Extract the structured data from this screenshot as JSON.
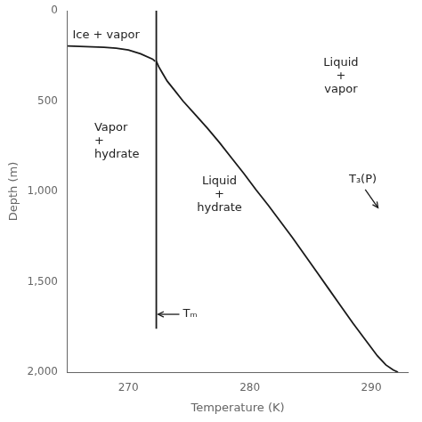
{
  "chart_data": {
    "type": "line",
    "xlabel": "Temperature (K)",
    "ylabel": "Depth (m)",
    "xlim": [
      265,
      293
    ],
    "ylim": [
      2000,
      0
    ],
    "xticks": [
      270,
      280,
      290
    ],
    "yticks": [
      0,
      500,
      1000,
      1500,
      2000
    ],
    "grid": false,
    "series": [
      {
        "color": "#1a1a1a",
        "x": [
          265.0,
          266.0,
          267.0,
          268.0,
          269.0,
          270.0,
          271.0,
          272.0,
          272.2
        ],
        "values": [
          195,
          198,
          200,
          203,
          208,
          217,
          238,
          268,
          280
        ]
      },
      {
        "color": "#1a1a1a",
        "x": [
          272.3,
          272.3
        ],
        "values": [
          0,
          1760
        ]
      },
      {
        "color": "#1a1a1a",
        "x": [
          272.3,
          272.5,
          272.8,
          273.2,
          273.8,
          274.5,
          275.5,
          276.5,
          277.5,
          278.5,
          279.5,
          280.5,
          281.5,
          282.5,
          283.5,
          284.5,
          285.5,
          286.5,
          287.5,
          288.5,
          289.5,
          290.5,
          291.2,
          291.8,
          292.2
        ],
        "values": [
          280,
          310,
          345,
          390,
          440,
          500,
          575,
          650,
          730,
          815,
          900,
          990,
          1075,
          1165,
          1255,
          1350,
          1445,
          1540,
          1635,
          1730,
          1820,
          1910,
          1960,
          1988,
          2000
        ]
      }
    ],
    "annotations": [
      {
        "text": "Ice + vapor",
        "x": 265.4,
        "y": 100
      },
      {
        "text": "Vapor\n+\nhydrate",
        "x": 267.2,
        "y": 720
      },
      {
        "text": "Liquid\n+\nhydrate",
        "x": 277.5,
        "y": 1020
      },
      {
        "text": "Liquid\n+\nvapor",
        "x": 287.5,
        "y": 250
      },
      {
        "text": "Tₘ",
        "x": 274.5,
        "y": 1680,
        "arrow": {
          "x_start": 274.2,
          "y_start": 1680,
          "x_end": 272.45,
          "y_end": 1680
        }
      },
      {
        "text": "T₃(P)",
        "x": 289.3,
        "y": 970,
        "arrow": {
          "x_start": 289.5,
          "y_start": 990,
          "x_end": 290.55,
          "y_end": 1090
        }
      }
    ]
  }
}
